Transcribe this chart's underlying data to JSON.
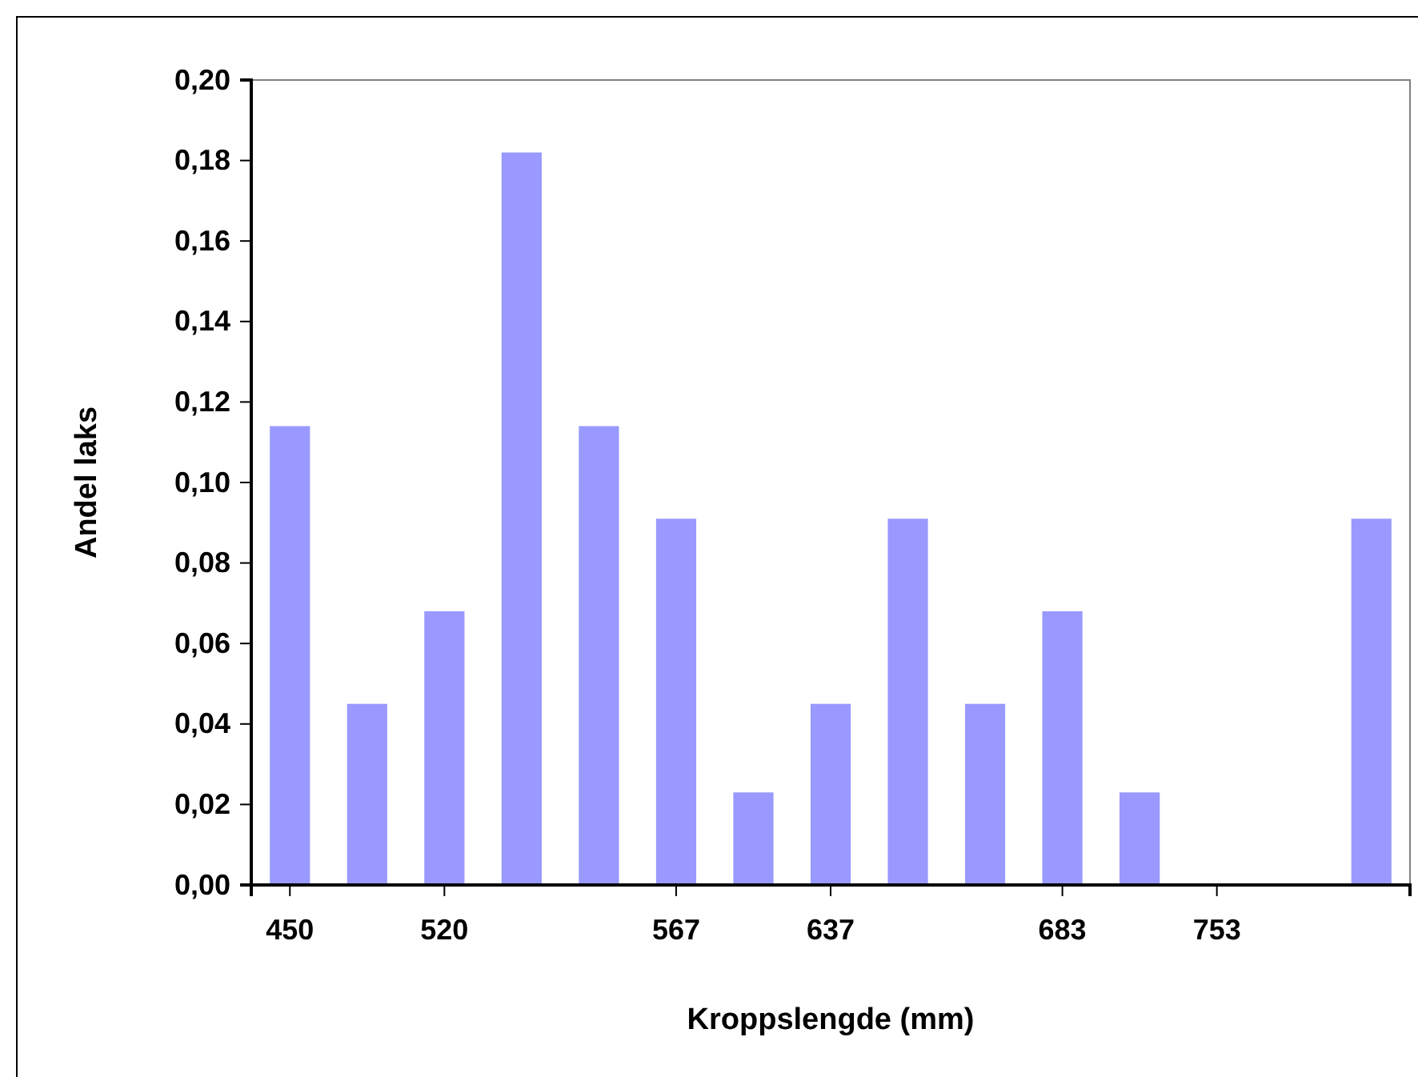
{
  "chart_data": {
    "type": "bar",
    "xlabel": "Kroppslengde (mm)",
    "ylabel": "Andel laks",
    "categories": [
      "450",
      null,
      "520",
      null,
      null,
      "567",
      null,
      "637",
      null,
      null,
      "683",
      null,
      "753",
      null,
      null
    ],
    "values": [
      0.114,
      0.045,
      0.068,
      0.182,
      0.114,
      0.091,
      0.023,
      0.045,
      0.091,
      0.045,
      0.068,
      0.023,
      0,
      0,
      0.091
    ],
    "color": "#9999ff",
    "ylim": [
      0,
      0.2
    ],
    "yticks": [
      {
        "value": 0,
        "label": "0,00"
      },
      {
        "value": 0.02,
        "label": "0,02"
      },
      {
        "value": 0.04,
        "label": "0,04"
      },
      {
        "value": 0.06,
        "label": "0,06"
      },
      {
        "value": 0.08,
        "label": "0,08"
      },
      {
        "value": 0.1,
        "label": "0,10"
      },
      {
        "value": 0.12,
        "label": "0,12"
      },
      {
        "value": 0.14,
        "label": "0,14"
      },
      {
        "value": 0.16,
        "label": "0,16"
      },
      {
        "value": 0.18,
        "label": "0,18"
      },
      {
        "value": 0.2,
        "label": "0,20"
      }
    ]
  }
}
